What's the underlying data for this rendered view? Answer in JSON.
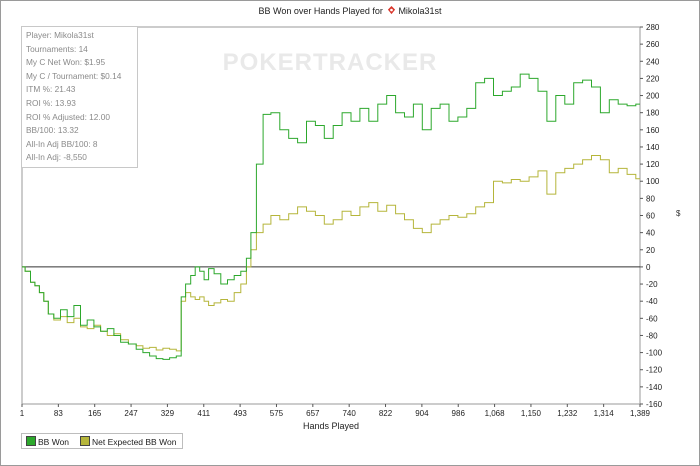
{
  "title_prefix": "BB Won over Hands Played for",
  "player_name": "Mikola31st",
  "stats": [
    "Player: Mikola31st",
    "Tournaments: 14",
    "My C Net Won: $1.95",
    "My C / Tournament: $0.14",
    "ITM %: 21.43",
    "ROI %: 13.93",
    "ROI % Adjusted: 12.00",
    "BB/100: 13.32",
    "All-In Adj BB/100: 8",
    "All-In Adj: -8,550"
  ],
  "watermark": "POKERTRACKER",
  "colors": {
    "bb_won": "#2ca82c",
    "expected": "#b5b53a",
    "poker_icon": "#d9362b"
  },
  "chart_data": {
    "type": "line",
    "title": "BB Won over Hands Played for Mikola31st",
    "xlabel": "Hands Played",
    "ylabel": "",
    "xlim": [
      1,
      1389
    ],
    "ylim": [
      -160,
      280
    ],
    "x_ticks": [
      "1",
      "83",
      "165",
      "247",
      "329",
      "411",
      "493",
      "575",
      "657",
      "740",
      "822",
      "904",
      "986",
      "1,068",
      "1,150",
      "1,232",
      "1,314",
      "1,389"
    ],
    "y_ticks": [
      -160,
      -140,
      -120,
      -100,
      -80,
      -60,
      -40,
      -20,
      0,
      20,
      40,
      60,
      80,
      100,
      120,
      140,
      160,
      180,
      200,
      220,
      240,
      260,
      280
    ],
    "grid": false,
    "legend_position": "bottom-left",
    "series": [
      {
        "name": "BB Won",
        "color": "#2ca82c",
        "x": [
          1,
          15,
          25,
          35,
          45,
          55,
          65,
          80,
          95,
          110,
          125,
          140,
          155,
          170,
          185,
          200,
          215,
          230,
          250,
          265,
          280,
          295,
          310,
          325,
          340,
          355,
          362,
          375,
          385,
          395,
          405,
          415,
          425,
          440,
          455,
          470,
          485,
          500,
          510,
          520,
          535,
          550,
          570,
          590,
          610,
          630,
          650,
          670,
          690,
          710,
          730,
          750,
          770,
          790,
          810,
          830,
          850,
          870,
          890,
          910,
          930,
          950,
          970,
          990,
          1010,
          1030,
          1050,
          1070,
          1090,
          1110,
          1130,
          1150,
          1170,
          1190,
          1210,
          1230,
          1250,
          1270,
          1290,
          1310,
          1330,
          1350,
          1370,
          1389
        ],
        "y": [
          0,
          -5,
          -18,
          -22,
          -30,
          -40,
          -55,
          -60,
          -50,
          -58,
          -45,
          -68,
          -62,
          -70,
          -75,
          -72,
          -80,
          -88,
          -90,
          -96,
          -100,
          -104,
          -107,
          -108,
          -106,
          -104,
          -35,
          -20,
          -10,
          0,
          -5,
          -15,
          -2,
          -8,
          -20,
          -15,
          -10,
          -5,
          10,
          40,
          120,
          178,
          180,
          160,
          150,
          145,
          170,
          165,
          150,
          165,
          180,
          170,
          185,
          170,
          190,
          200,
          180,
          175,
          190,
          160,
          185,
          190,
          170,
          175,
          185,
          215,
          220,
          200,
          205,
          210,
          225,
          220,
          205,
          170,
          200,
          190,
          215,
          218,
          210,
          180,
          195,
          190,
          188,
          190
        ]
      },
      {
        "name": "Net Expected BB Won",
        "color": "#b5b53a",
        "x": [
          1,
          15,
          25,
          35,
          45,
          55,
          65,
          80,
          95,
          110,
          125,
          140,
          155,
          170,
          185,
          200,
          215,
          230,
          250,
          265,
          280,
          295,
          310,
          325,
          340,
          355,
          362,
          375,
          385,
          395,
          405,
          415,
          425,
          440,
          455,
          470,
          485,
          500,
          510,
          520,
          535,
          550,
          570,
          590,
          610,
          630,
          650,
          670,
          690,
          710,
          730,
          750,
          770,
          790,
          810,
          830,
          850,
          870,
          890,
          910,
          930,
          950,
          970,
          990,
          1010,
          1030,
          1050,
          1070,
          1090,
          1110,
          1130,
          1150,
          1170,
          1190,
          1210,
          1230,
          1250,
          1270,
          1290,
          1310,
          1330,
          1350,
          1370,
          1389
        ],
        "y": [
          0,
          -5,
          -18,
          -22,
          -30,
          -40,
          -55,
          -62,
          -58,
          -65,
          -60,
          -70,
          -72,
          -68,
          -75,
          -80,
          -78,
          -85,
          -90,
          -92,
          -95,
          -94,
          -97,
          -95,
          -96,
          -98,
          -40,
          -30,
          -35,
          -38,
          -35,
          -40,
          -45,
          -42,
          -38,
          -40,
          -30,
          -20,
          0,
          20,
          40,
          50,
          60,
          55,
          62,
          70,
          65,
          60,
          50,
          55,
          65,
          60,
          70,
          75,
          65,
          72,
          62,
          55,
          45,
          40,
          50,
          55,
          60,
          58,
          62,
          70,
          75,
          100,
          98,
          102,
          100,
          105,
          112,
          85,
          110,
          115,
          120,
          125,
          130,
          125,
          110,
          115,
          108,
          103
        ]
      }
    ]
  }
}
